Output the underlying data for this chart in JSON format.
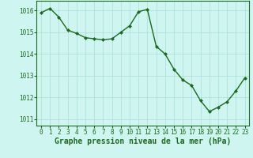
{
  "x": [
    0,
    1,
    2,
    3,
    4,
    5,
    6,
    7,
    8,
    9,
    10,
    11,
    12,
    13,
    14,
    15,
    16,
    17,
    18,
    19,
    20,
    21,
    22,
    23
  ],
  "y": [
    1015.9,
    1016.1,
    1015.7,
    1015.1,
    1014.95,
    1014.75,
    1014.7,
    1014.65,
    1014.7,
    1015.0,
    1015.3,
    1015.95,
    1016.05,
    1014.35,
    1014.0,
    1013.3,
    1012.8,
    1012.55,
    1011.85,
    1011.35,
    1011.55,
    1011.8,
    1012.3,
    1012.9
  ],
  "line_color": "#1a6b1a",
  "marker": "D",
  "marker_size": 2.0,
  "background_color": "#cff5f0",
  "grid_color": "#a8ddd8",
  "xlabel": "Graphe pression niveau de la mer (hPa)",
  "xlabel_fontsize": 7,
  "ylabel_ticks": [
    1011,
    1012,
    1013,
    1014,
    1015,
    1016
  ],
  "xtick_labels": [
    "0",
    "1",
    "2",
    "3",
    "4",
    "5",
    "6",
    "7",
    "8",
    "9",
    "10",
    "11",
    "12",
    "13",
    "14",
    "15",
    "16",
    "17",
    "18",
    "19",
    "20",
    "21",
    "22",
    "23"
  ],
  "ylim": [
    1010.7,
    1016.45
  ],
  "xlim": [
    -0.5,
    23.5
  ],
  "tick_fontsize": 5.5,
  "line_width": 1.0
}
